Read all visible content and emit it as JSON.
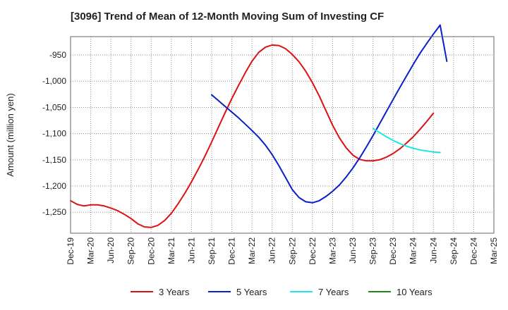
{
  "chart_data": {
    "type": "line",
    "title": "[3096]  Trend of Mean of 12-Month Moving Sum of Investing CF",
    "xlabel": "",
    "ylabel": "Amount (million yen)",
    "ylim": [
      -1290,
      -915
    ],
    "yticks": [
      -950,
      -1000,
      -1050,
      -1100,
      -1150,
      -1200,
      -1250
    ],
    "ytick_labels": [
      "-950",
      "-1,000",
      "-1,050",
      "-1,100",
      "-1,150",
      "-1,200",
      "-1,250"
    ],
    "x_labels": [
      "Dec-19",
      "Mar-20",
      "Jun-20",
      "Sep-20",
      "Dec-20",
      "Mar-21",
      "Jun-21",
      "Sep-21",
      "Dec-21",
      "Mar-22",
      "Jun-22",
      "Sep-22",
      "Dec-22",
      "Mar-23",
      "Jun-23",
      "Sep-23",
      "Dec-23",
      "Mar-24",
      "Jun-24",
      "Sep-24",
      "Dec-24",
      "Mar-25"
    ],
    "x_months_total": 63,
    "grid": true,
    "legend_position": "bottom",
    "series": [
      {
        "name": "3 Years",
        "color": "#dd1111",
        "start_month": 0,
        "values": [
          -1228,
          -1235,
          -1238,
          -1236,
          -1236,
          -1238,
          -1242,
          -1247,
          -1254,
          -1262,
          -1272,
          -1278,
          -1279,
          -1275,
          -1266,
          -1252,
          -1234,
          -1214,
          -1192,
          -1168,
          -1143,
          -1116,
          -1088,
          -1060,
          -1033,
          -1008,
          -984,
          -962,
          -945,
          -935,
          -931,
          -932,
          -938,
          -949,
          -963,
          -981,
          -1003,
          -1028,
          -1056,
          -1084,
          -1108,
          -1127,
          -1141,
          -1149,
          -1152,
          -1152,
          -1150,
          -1145,
          -1138,
          -1129,
          -1118,
          -1106,
          -1092,
          -1077,
          -1061
        ]
      },
      {
        "name": "5 Years",
        "color": "#0a1ecc",
        "start_month": 21,
        "values": [
          -1026,
          -1037,
          -1048,
          -1059,
          -1070,
          -1082,
          -1094,
          -1107,
          -1122,
          -1140,
          -1161,
          -1184,
          -1207,
          -1222,
          -1230,
          -1232,
          -1228,
          -1220,
          -1210,
          -1198,
          -1183,
          -1166,
          -1147,
          -1126,
          -1104,
          -1081,
          -1058,
          -1035,
          -1012,
          -990,
          -968,
          -947,
          -928,
          -910,
          -893,
          -962
        ]
      },
      {
        "name": "7 Years",
        "color": "#22e6e6",
        "start_month": 45,
        "values": [
          -1090,
          -1098,
          -1106,
          -1113,
          -1119,
          -1124,
          -1128,
          -1131,
          -1133,
          -1135,
          -1136
        ]
      },
      {
        "name": "10 Years",
        "color": "#1a8a1a",
        "start_month": 0,
        "values": []
      }
    ]
  }
}
